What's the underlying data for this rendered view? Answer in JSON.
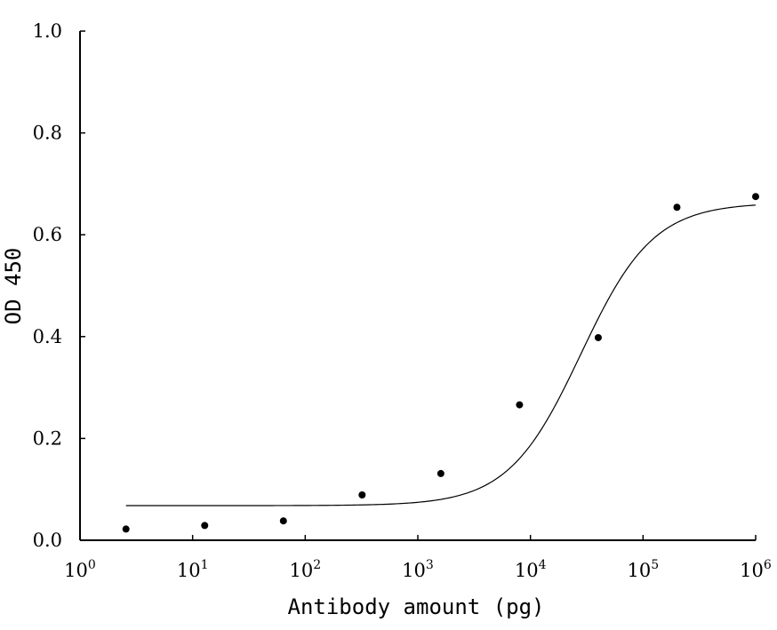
{
  "chart_data": {
    "type": "scatter",
    "title": "",
    "xlabel": "Antibody amount (pg)",
    "ylabel": "OD 450",
    "x_scale": "log",
    "xlim": [
      1,
      1000000
    ],
    "ylim": [
      0,
      1.0
    ],
    "x_ticks": [
      {
        "base": "10",
        "exp": "0",
        "value": 1
      },
      {
        "base": "10",
        "exp": "1",
        "value": 10
      },
      {
        "base": "10",
        "exp": "2",
        "value": 100
      },
      {
        "base": "10",
        "exp": "3",
        "value": 1000
      },
      {
        "base": "10",
        "exp": "4",
        "value": 10000
      },
      {
        "base": "10",
        "exp": "5",
        "value": 100000
      },
      {
        "base": "10",
        "exp": "6",
        "value": 1000000
      }
    ],
    "y_ticks": [
      {
        "label": "0.0",
        "value": 0
      },
      {
        "label": "0.2",
        "value": 0.2
      },
      {
        "label": "0.4",
        "value": 0.4
      },
      {
        "label": "0.6",
        "value": 0.6
      },
      {
        "label": "0.8",
        "value": 0.8
      },
      {
        "label": "1.0",
        "value": 1.0
      }
    ],
    "grid": false,
    "legend": "none",
    "points": [
      {
        "x": 2.56,
        "y": 0.022
      },
      {
        "x": 12.8,
        "y": 0.029
      },
      {
        "x": 64,
        "y": 0.038
      },
      {
        "x": 320,
        "y": 0.089
      },
      {
        "x": 1600,
        "y": 0.131
      },
      {
        "x": 8000,
        "y": 0.266
      },
      {
        "x": 40000,
        "y": 0.398
      },
      {
        "x": 200000,
        "y": 0.654
      },
      {
        "x": 1000000,
        "y": 0.675
      }
    ],
    "fit_curve": {
      "type": "4PL",
      "bottom": 0.068,
      "top": 0.663,
      "ec50": 28000,
      "hill": 1.35,
      "x_range": [
        2.56,
        1000000
      ]
    },
    "colors": {
      "points": "#000000",
      "curve": "#000000",
      "axes": "#000000"
    }
  }
}
